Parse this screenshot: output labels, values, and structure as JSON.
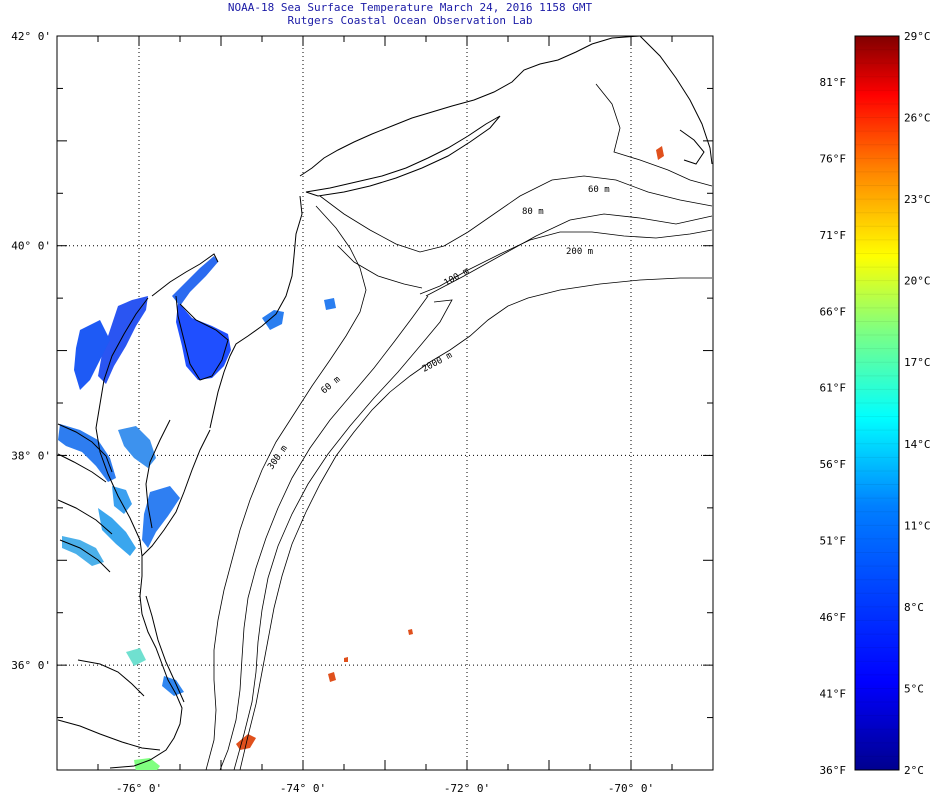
{
  "header": {
    "title_line1": "NOAA-18 Sea Surface Temperature March 24, 2016 1158 GMT",
    "title_line2": "Rutgers Coastal Ocean Observation Lab"
  },
  "map": {
    "lon_range": [
      -77,
      -69
    ],
    "lat_range": [
      35,
      42
    ],
    "x_ticks": [
      {
        "lon": -76,
        "label": "-76° 0'"
      },
      {
        "lon": -74,
        "label": "-74° 0'"
      },
      {
        "lon": -72,
        "label": "-72° 0'"
      },
      {
        "lon": -70,
        "label": "-70° 0'"
      }
    ],
    "y_ticks": [
      {
        "lat": 42,
        "label": "42° 0'"
      },
      {
        "lat": 40,
        "label": "40° 0'"
      },
      {
        "lat": 38,
        "label": "38° 0'"
      },
      {
        "lat": 36,
        "label": "36° 0'"
      }
    ],
    "grid": "dotted",
    "contour_labels": [
      "60 m",
      "80 m",
      "200 m",
      "100 m",
      "2000 m",
      "60 m",
      "300 m"
    ],
    "colors": {
      "land_line": "#000000",
      "cold_water": "#1f4fff",
      "cool_water": "#2aa0f0",
      "warm_patch": "#e0501c",
      "shallow_warm": "#70e8d0"
    }
  },
  "colorbar": {
    "celsius_range": [
      2,
      29
    ],
    "fahrenheit_range": [
      36,
      84
    ],
    "celsius_labels": [
      "29°C",
      "26°C",
      "23°C",
      "20°C",
      "17°C",
      "14°C",
      "11°C",
      "8°C",
      "5°C",
      "2°C"
    ],
    "fahrenheit_labels": [
      "81°F",
      "76°F",
      "71°F",
      "66°F",
      "61°F",
      "56°F",
      "51°F",
      "46°F",
      "41°F",
      "36°F"
    ],
    "celsius_values": [
      29,
      26,
      23,
      20,
      17,
      14,
      11,
      8,
      5,
      2
    ],
    "fahrenheit_values": [
      81,
      76,
      71,
      66,
      61,
      56,
      51,
      46,
      41,
      36
    ],
    "colormap": "jet",
    "stops": [
      "#00008f",
      "#0000ff",
      "#0080ff",
      "#00ffff",
      "#80ff80",
      "#ffff00",
      "#ff8000",
      "#ff0000",
      "#800000"
    ]
  }
}
